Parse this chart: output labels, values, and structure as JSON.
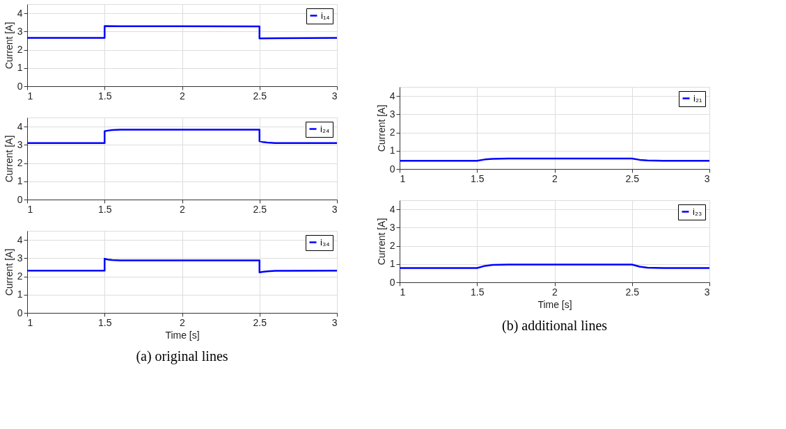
{
  "chart_data": [
    {
      "type": "line",
      "ylabel": "Current [A]",
      "xlim": [
        1,
        3
      ],
      "xticks": [
        1,
        1.5,
        2,
        2.5,
        3
      ],
      "ylim": [
        0,
        4.5
      ],
      "yticks": [
        0,
        1,
        2,
        3,
        4
      ],
      "grid": true,
      "legend": "top right",
      "series": [
        {
          "name": "i₁₄",
          "color": "#0000ff",
          "x": [
            1,
            1.5,
            1.5,
            1.6,
            2.5,
            2.5,
            2.6,
            3
          ],
          "values": [
            2.65,
            2.65,
            3.3,
            3.29,
            3.28,
            2.62,
            2.63,
            2.65
          ]
        }
      ]
    },
    {
      "type": "line",
      "ylabel": "Current [A]",
      "xlim": [
        1,
        3
      ],
      "xticks": [
        1,
        1.5,
        2,
        2.5,
        3
      ],
      "ylim": [
        0,
        4.5
      ],
      "yticks": [
        0,
        1,
        2,
        3,
        4
      ],
      "grid": true,
      "legend": "top right",
      "series": [
        {
          "name": "i₂₄",
          "color": "#0000ff",
          "x": [
            1,
            1.5,
            1.5,
            1.52,
            1.55,
            1.6,
            2.5,
            2.5,
            2.52,
            2.55,
            2.6,
            3
          ],
          "values": [
            3.1,
            3.1,
            3.75,
            3.78,
            3.81,
            3.83,
            3.83,
            3.2,
            3.16,
            3.13,
            3.1,
            3.1
          ]
        }
      ]
    },
    {
      "type": "line",
      "ylabel": "Current [A]",
      "xlabel": "Time [s]",
      "xlim": [
        1,
        3
      ],
      "xticks": [
        1,
        1.5,
        2,
        2.5,
        3
      ],
      "ylim": [
        0,
        4.5
      ],
      "yticks": [
        0,
        1,
        2,
        3,
        4
      ],
      "grid": true,
      "legend": "top right",
      "annotations": [
        "(a) original lines"
      ],
      "series": [
        {
          "name": "i₃₄",
          "color": "#0000ff",
          "x": [
            1,
            1.5,
            1.5,
            1.52,
            1.55,
            1.6,
            2.5,
            2.5,
            2.52,
            2.55,
            2.6,
            3
          ],
          "values": [
            2.32,
            2.32,
            2.97,
            2.93,
            2.9,
            2.88,
            2.88,
            2.22,
            2.25,
            2.28,
            2.31,
            2.32
          ]
        }
      ]
    },
    {
      "type": "line",
      "ylabel": "Current [A]",
      "xlim": [
        1,
        3
      ],
      "xticks": [
        1,
        1.5,
        2,
        2.5,
        3
      ],
      "ylim": [
        0,
        4.5
      ],
      "yticks": [
        0,
        1,
        2,
        3,
        4
      ],
      "grid": true,
      "legend": "top right",
      "series": [
        {
          "name": "i₂₁",
          "color": "#0000ff",
          "x": [
            1,
            1.5,
            1.55,
            1.6,
            1.7,
            2.5,
            2.55,
            2.6,
            2.7,
            3
          ],
          "values": [
            0.45,
            0.45,
            0.52,
            0.55,
            0.57,
            0.57,
            0.5,
            0.47,
            0.45,
            0.45
          ]
        }
      ]
    },
    {
      "type": "line",
      "ylabel": "Current [A]",
      "xlabel": "Time [s]",
      "xlim": [
        1,
        3
      ],
      "xticks": [
        1,
        1.5,
        2,
        2.5,
        3
      ],
      "ylim": [
        0,
        4.5
      ],
      "yticks": [
        0,
        1,
        2,
        3,
        4
      ],
      "grid": true,
      "legend": "top right",
      "annotations": [
        "(b) additional lines"
      ],
      "series": [
        {
          "name": "i₂₃",
          "color": "#0000ff",
          "x": [
            1,
            1.5,
            1.55,
            1.6,
            1.7,
            2.5,
            2.55,
            2.6,
            2.7,
            3
          ],
          "values": [
            0.78,
            0.78,
            0.9,
            0.95,
            0.97,
            0.97,
            0.86,
            0.8,
            0.78,
            0.78
          ]
        }
      ]
    }
  ]
}
